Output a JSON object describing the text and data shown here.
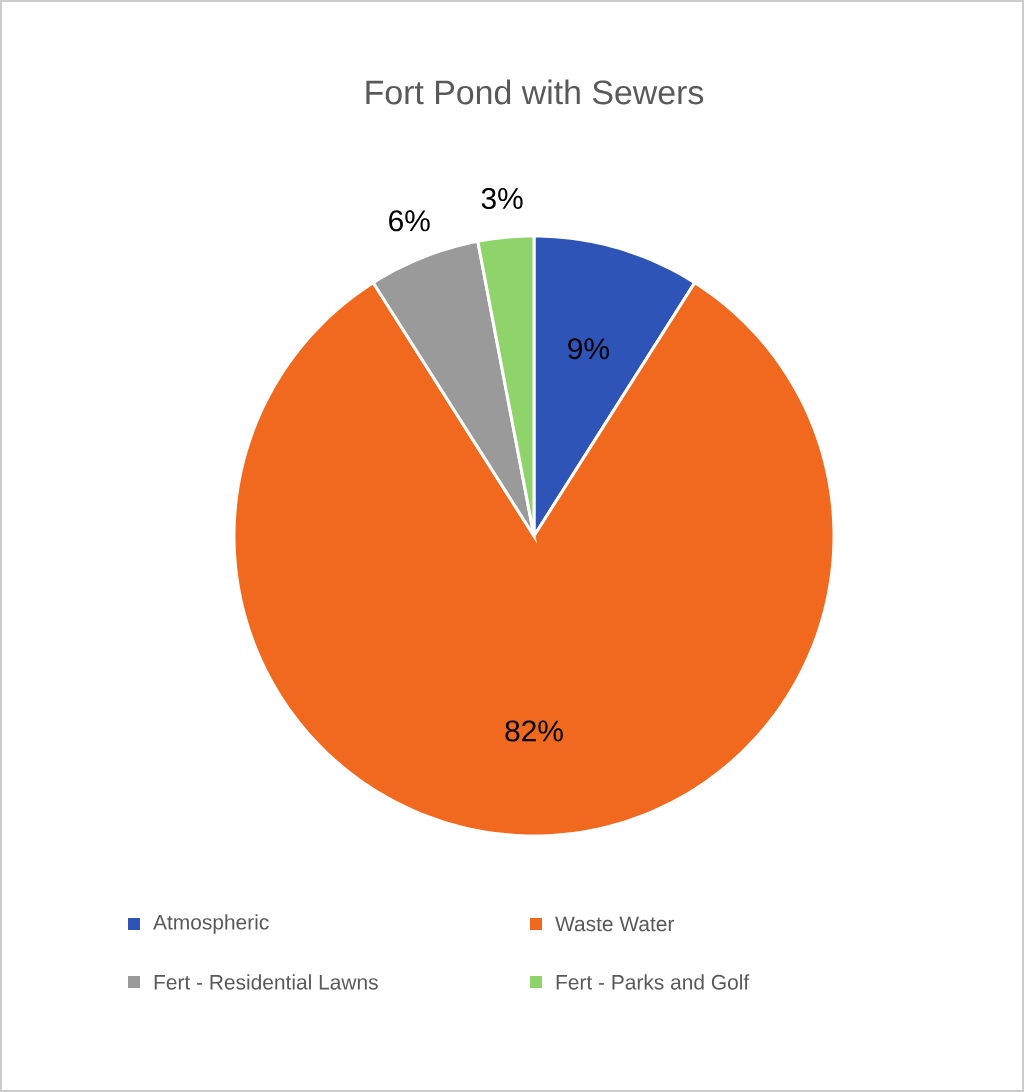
{
  "chart_data": {
    "type": "pie",
    "title": "Fort Pond with Sewers",
    "categories": [
      "Atmospheric",
      "Waste Water",
      "Fert - Residential Lawns",
      "Fert - Parks and Golf"
    ],
    "values": [
      9,
      82,
      6,
      3
    ],
    "colors": [
      "#2e54b8",
      "#f0691f",
      "#9a9a9a",
      "#8ed46a"
    ],
    "value_labels": [
      "9%",
      "82%",
      "6%",
      "3%"
    ],
    "legend": "bottom"
  }
}
